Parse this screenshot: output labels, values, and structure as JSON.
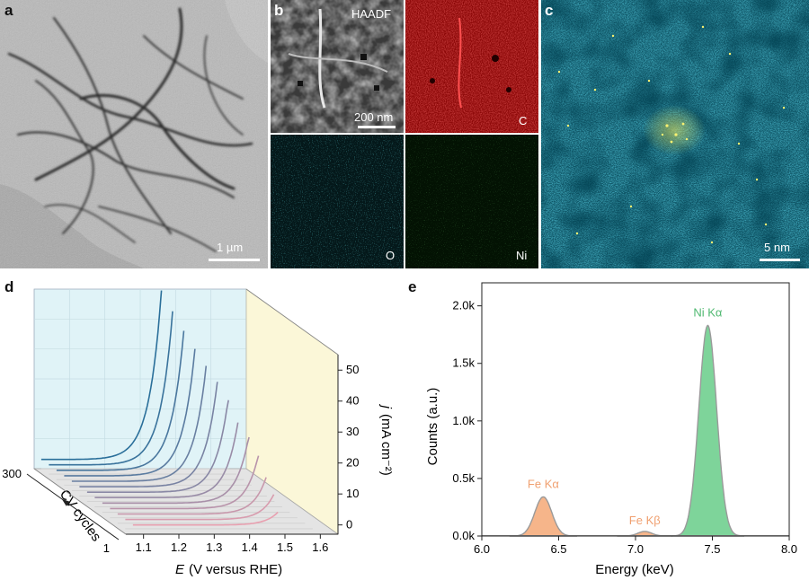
{
  "panel_labels": {
    "a": "a",
    "b": "b",
    "c": "c",
    "d": "d",
    "e": "e"
  },
  "panel_a": {
    "scale_label": "1 µm"
  },
  "panel_b": {
    "tiles": [
      {
        "label": "HAADF",
        "color": "#cfcfcf"
      },
      {
        "label": "C",
        "color": "#e01010"
      },
      {
        "label": "O",
        "color": "#20c8d8"
      },
      {
        "label": "Ni",
        "color": "#30c830"
      }
    ],
    "scale_label": "200 nm"
  },
  "panel_c": {
    "scale_label": "5 nm",
    "base_color": "#1a90a8",
    "spot_color": "#f0f040"
  },
  "chart_data": [
    {
      "type": "line",
      "panel": "d",
      "xlabel_var": "E",
      "xlabel_unit": "(V versus RHE)",
      "ylabel_var": "j",
      "ylabel_unit": "(mA cm⁻²)",
      "zlabel": "CV cycles",
      "x_ticks": [
        "1.1",
        "1.2",
        "1.3",
        "1.4",
        "1.5",
        "1.6"
      ],
      "y_ticks": [
        "0",
        "10",
        "20",
        "30",
        "40",
        "50"
      ],
      "z_ticks": [
        "1",
        "300"
      ],
      "xlim": [
        1.05,
        1.65
      ],
      "ylim": [
        -3,
        55
      ],
      "curves": 13,
      "colors": {
        "first": "#e8a0b0",
        "last": "#2a6f9a",
        "back_wall": "#e0f3f7",
        "side_wall": "#fbf7d8",
        "floor": "#e4e4e4"
      }
    },
    {
      "type": "area",
      "panel": "e",
      "xlabel": "Energy (keV)",
      "ylabel": "Counts (a.u.)",
      "xlim": [
        6.0,
        8.0
      ],
      "ylim": [
        0,
        2200
      ],
      "x_ticks": [
        "6.0",
        "6.5",
        "7.0",
        "7.5",
        "8.0"
      ],
      "y_ticks": [
        "0.0k",
        "0.5k",
        "1.0k",
        "1.5k",
        "2.0k"
      ],
      "peaks": [
        {
          "label": "Fe Kα",
          "center": 6.4,
          "height": 340,
          "color": "#f6b58a"
        },
        {
          "label": "Fe Kβ",
          "center": 7.06,
          "height": 40,
          "color": "#f6b58a"
        },
        {
          "label": "Ni Kα",
          "center": 7.47,
          "height": 1830,
          "color": "#7ed49a"
        }
      ]
    }
  ]
}
